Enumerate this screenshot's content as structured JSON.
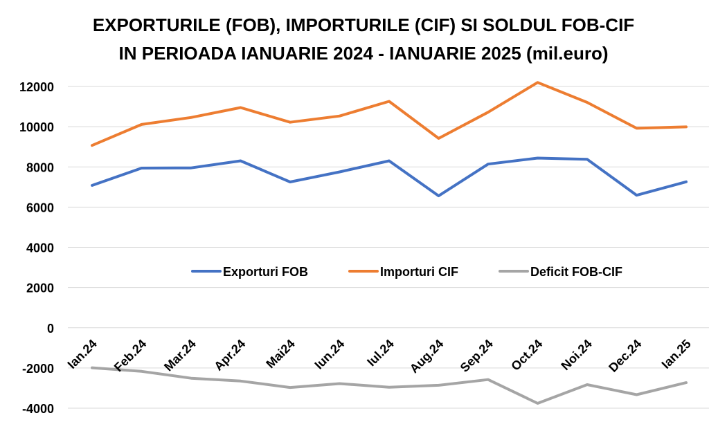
{
  "chart_data": {
    "type": "line",
    "title": "EXPORTURILE (FOB), IMPORTURILE (CIF) SI SOLDUL FOB-CIF",
    "subtitle": "IN PERIOADA IANUARIE 2024 - IANUARIE 2025 (mil.euro)",
    "categories": [
      "Ian.24",
      "Feb.24",
      "Mar.24",
      "Apr.24",
      "Mai24",
      "Iun.24",
      "Iul.24",
      "Aug.24",
      "Sep.24",
      "Oct.24",
      "Noi.24",
      "Dec.24",
      "Ian.25"
    ],
    "yticks": [
      "12000",
      "10000",
      "8000",
      "6000",
      "4000",
      "2000",
      "0",
      "-2000",
      "-4000"
    ],
    "ylim": [
      -4000,
      12000
    ],
    "grid": true,
    "legend_position": "inside-middle",
    "series": [
      {
        "name": "Exporturi FOB",
        "color": "#4472C4",
        "values": [
          7080,
          7940,
          7950,
          8300,
          7250,
          7750,
          8300,
          6560,
          8140,
          8440,
          8380,
          6590,
          7260
        ]
      },
      {
        "name": "Importuri CIF",
        "color": "#ED7D31",
        "values": [
          9070,
          10110,
          10460,
          10950,
          10220,
          10530,
          11260,
          9420,
          10720,
          12200,
          11210,
          9920,
          9990
        ]
      },
      {
        "name": "Deficit FOB-CIF",
        "color": "#A5A5A5",
        "values": [
          -1990,
          -2170,
          -2510,
          -2650,
          -2970,
          -2780,
          -2960,
          -2860,
          -2580,
          -3760,
          -2830,
          -3330,
          -2730
        ]
      }
    ]
  }
}
